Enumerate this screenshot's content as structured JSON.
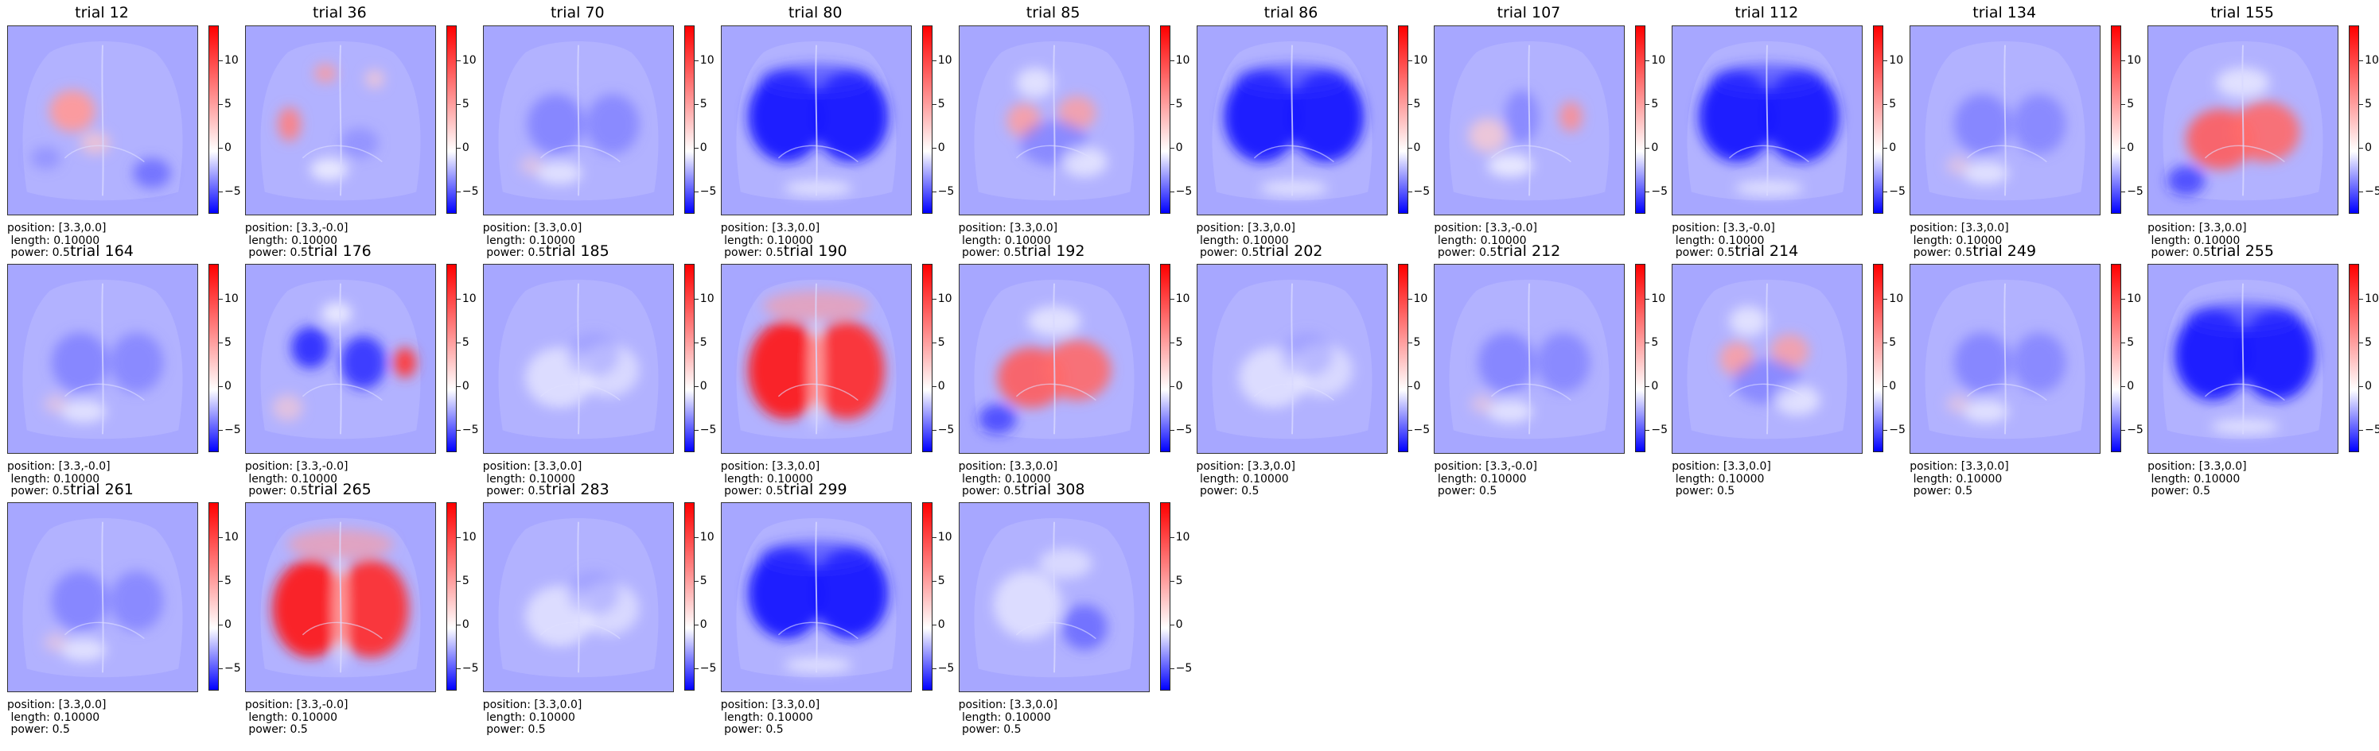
{
  "chart_data": {
    "type": "heatmap",
    "colormap": "bwr",
    "colorbar_ticks": [
      10,
      5,
      0,
      -5
    ],
    "colorbar_tick_labels": [
      "10",
      "5",
      "0",
      "−5"
    ],
    "colorbar_range": [
      -7.5,
      14
    ],
    "info_labels": {
      "length": " length: 0.10000",
      "power": " power: 0.5"
    },
    "panels": [
      {
        "title": "trial 12",
        "position": "position: [3.3,0.0]",
        "pattern": "activation-left"
      },
      {
        "title": "trial 36",
        "position": "position: [3.3,-0.0]",
        "pattern": "sparse-red"
      },
      {
        "title": "trial 70",
        "position": "position: [3.3,0.0]",
        "pattern": "mild-blue"
      },
      {
        "title": "trial 80",
        "position": "position: [3.3,0.0]",
        "pattern": "strong-blue"
      },
      {
        "title": "trial 85",
        "position": "position: [3.3,0.0]",
        "pattern": "mixed"
      },
      {
        "title": "trial 86",
        "position": "position: [3.3,0.0]",
        "pattern": "strong-blue"
      },
      {
        "title": "trial 107",
        "position": "position: [3.3,-0.0]",
        "pattern": "mixed-light"
      },
      {
        "title": "trial 112",
        "position": "position: [3.3,-0.0]",
        "pattern": "strong-blue"
      },
      {
        "title": "trial 134",
        "position": "position: [3.3,0.0]",
        "pattern": "mild-blue"
      },
      {
        "title": "trial 155",
        "position": "position: [3.3,0.0]",
        "pattern": "red-center"
      },
      {
        "title": "trial 164",
        "position": "position: [3.3,-0.0]",
        "pattern": "mild-blue"
      },
      {
        "title": "trial 176",
        "position": "position: [3.3,-0.0]",
        "pattern": "blue-red"
      },
      {
        "title": "trial 185",
        "position": "position: [3.3,0.0]",
        "pattern": "faint"
      },
      {
        "title": "trial 190",
        "position": "position: [3.3,0.0]",
        "pattern": "strong-red"
      },
      {
        "title": "trial 192",
        "position": "position: [3.3,0.0]",
        "pattern": "red-center"
      },
      {
        "title": "trial 202",
        "position": "position: [3.3,0.0]",
        "pattern": "faint"
      },
      {
        "title": "trial 212",
        "position": "position: [3.3,-0.0]",
        "pattern": "mild-blue"
      },
      {
        "title": "trial 214",
        "position": "position: [3.3,0.0]",
        "pattern": "mixed"
      },
      {
        "title": "trial 249",
        "position": "position: [3.3,0.0]",
        "pattern": "mild-blue"
      },
      {
        "title": "trial 255",
        "position": "position: [3.3,0.0]",
        "pattern": "strong-blue"
      },
      {
        "title": "trial 261",
        "position": "position: [3.3,0.0]",
        "pattern": "mild-blue"
      },
      {
        "title": "trial 265",
        "position": "position: [3.3,-0.0]",
        "pattern": "strong-red"
      },
      {
        "title": "trial 283",
        "position": "position: [3.3,0.0]",
        "pattern": "faint"
      },
      {
        "title": "trial 299",
        "position": "position: [3.3,0.0]",
        "pattern": "strong-blue"
      },
      {
        "title": "trial 308",
        "position": "position: [3.3,0.0]",
        "pattern": "faint-blue"
      }
    ]
  }
}
